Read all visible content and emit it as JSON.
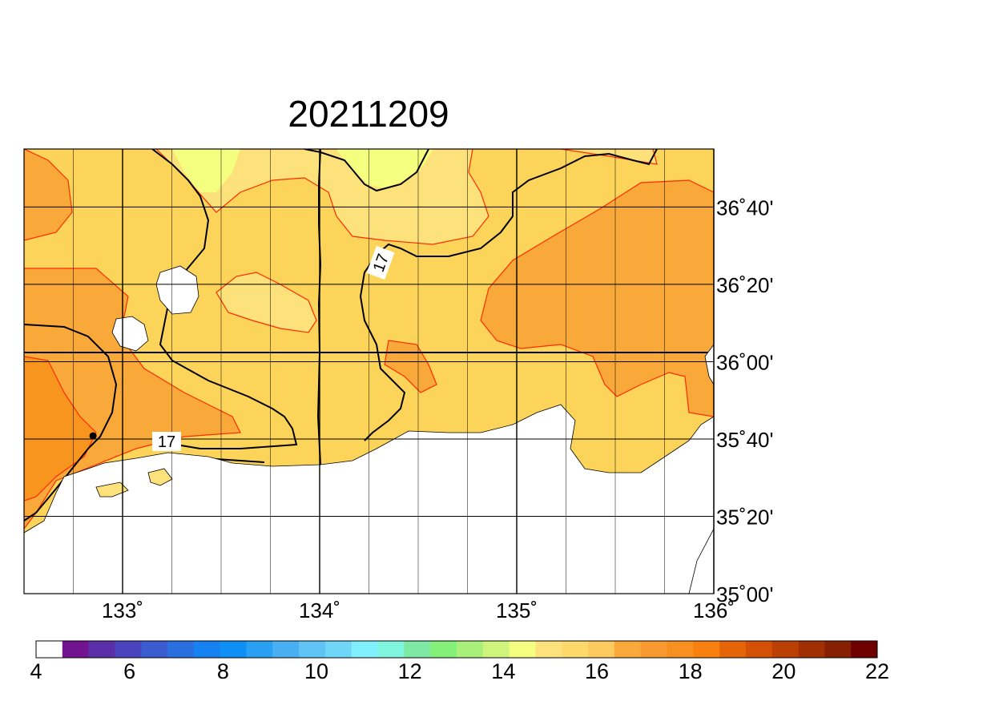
{
  "title": "20211209",
  "map": {
    "lon_range": [
      132.5,
      136.0
    ],
    "lat_range": [
      35.0,
      36.9167
    ],
    "x_ticks": [
      {
        "lon": 133.0,
        "label": "133˚"
      },
      {
        "lon": 134.0,
        "label": "134˚"
      },
      {
        "lon": 135.0,
        "label": "135˚"
      },
      {
        "lon": 136.0,
        "label": "136˚"
      }
    ],
    "y_ticks": [
      {
        "lat": 36.6667,
        "label": "36˚40'"
      },
      {
        "lat": 36.3333,
        "label": "36˚20'"
      },
      {
        "lat": 36.0,
        "label": "36˚00'"
      },
      {
        "lat": 35.6667,
        "label": "35˚40'"
      },
      {
        "lat": 35.3333,
        "label": "35˚20'"
      },
      {
        "lat": 35.0,
        "label": "35˚00'"
      }
    ],
    "contour_labels": [
      "17",
      "17"
    ],
    "marker": {
      "lon": 132.85,
      "lat": 35.68
    }
  },
  "colorbar": {
    "labels": [
      "4",
      "6",
      "8",
      "10",
      "12",
      "14",
      "16",
      "18",
      "20",
      "22"
    ],
    "colors": [
      "#ffffff",
      "#72148f",
      "#5a2fa8",
      "#4a43be",
      "#3b5bd1",
      "#2a6fe0",
      "#1681f0",
      "#0e8ff5",
      "#2aa0f2",
      "#48b0f2",
      "#5fc3f5",
      "#6fd6f7",
      "#80f0ff",
      "#7ff5dd",
      "#7ee8a5",
      "#84f07a",
      "#a9f07a",
      "#cef47c",
      "#f5ff7f",
      "#fde27b",
      "#fdd86b",
      "#fdca5f",
      "#f9a83a",
      "#f89a30",
      "#f8901f",
      "#f8800f",
      "#e66408",
      "#d45005",
      "#bb4004",
      "#a03003",
      "#862002",
      "#700000"
    ]
  }
}
